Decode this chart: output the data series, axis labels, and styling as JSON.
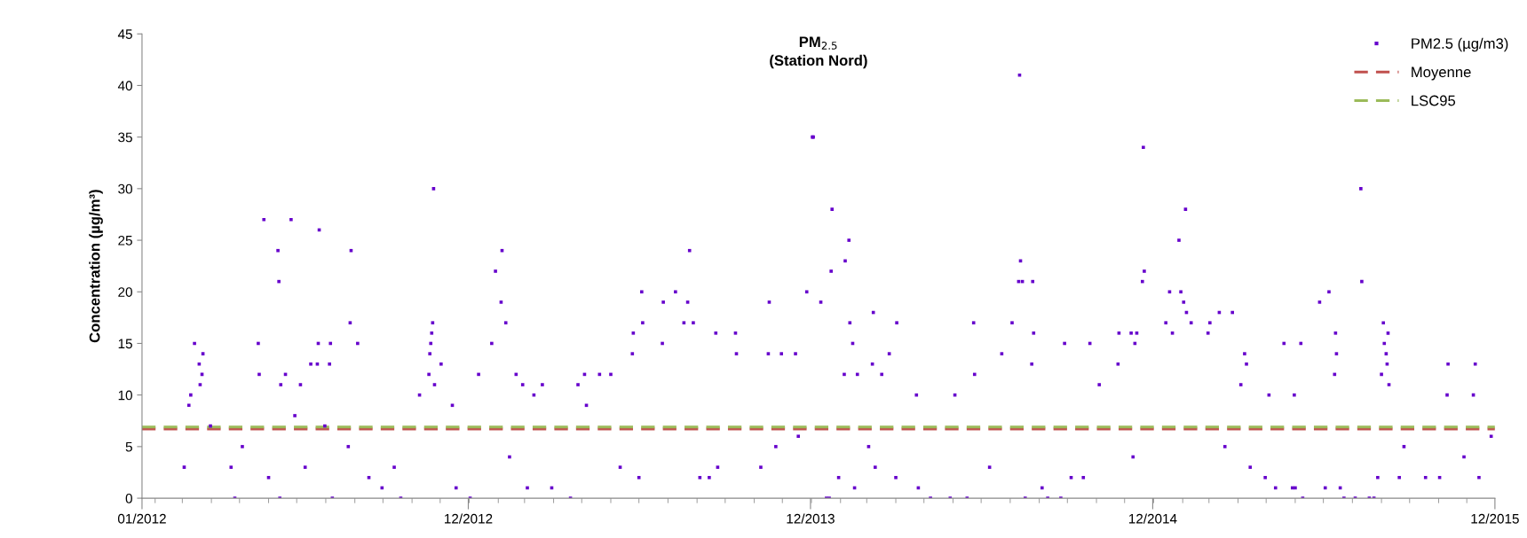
{
  "chart_data": {
    "type": "scatter",
    "title": "PM$_{2.5}$",
    "subtitle": "(Station Nord)",
    "ylabel": "Concentration (µg/m³)",
    "xlim": [
      "2012-01-18",
      "2015-12-31"
    ],
    "xticks": [
      {
        "value": "2012-01-18",
        "label": "01/2012"
      },
      {
        "value": "2012-12-31",
        "label": "12/2012"
      },
      {
        "value": "2013-12-31",
        "label": "12/2013"
      },
      {
        "value": "2014-12-31",
        "label": "12/2014"
      },
      {
        "value": "2015-12-31",
        "label": "12/2015"
      }
    ],
    "ylim": [
      0,
      45
    ],
    "yticks": [
      0,
      5,
      10,
      15,
      20,
      25,
      30,
      35,
      40,
      45
    ],
    "grid": false,
    "legend": "top right",
    "marker": "square",
    "series": [
      {
        "name": "PM2.5 (µg/m3)",
        "color": "#6600cc",
        "x": [
          "2012-03-03",
          "2012-03-08",
          "2012-03-10",
          "2012-03-14",
          "2012-03-19",
          "2012-03-20",
          "2012-03-22",
          "2012-03-23",
          "2012-03-31",
          "2012-04-22",
          "2012-04-26",
          "2012-05-04",
          "2012-05-21",
          "2012-05-22",
          "2012-05-27",
          "2012-06-01",
          "2012-06-11",
          "2012-06-12",
          "2012-06-13",
          "2012-06-14",
          "2012-06-19",
          "2012-06-25",
          "2012-06-29",
          "2012-07-05",
          "2012-07-10",
          "2012-07-16",
          "2012-07-23",
          "2012-07-24",
          "2012-07-25",
          "2012-07-31",
          "2012-08-05",
          "2012-08-06",
          "2012-08-08",
          "2012-08-25",
          "2012-08-27",
          "2012-08-28",
          "2012-09-04",
          "2012-09-16",
          "2012-09-30",
          "2012-10-13",
          "2012-10-20",
          "2012-11-09",
          "2012-11-19",
          "2012-11-20",
          "2012-11-21",
          "2012-11-22",
          "2012-11-23",
          "2012-11-24",
          "2012-11-25",
          "2012-12-02",
          "2012-12-14",
          "2012-12-18",
          "2013-01-02",
          "2013-01-11",
          "2013-01-25",
          "2013-01-29",
          "2013-02-04",
          "2013-02-05",
          "2013-02-09",
          "2013-02-13",
          "2013-02-20",
          "2013-02-27",
          "2013-03-04",
          "2013-03-11",
          "2013-03-20",
          "2013-03-30",
          "2013-04-19",
          "2013-04-27",
          "2013-05-04",
          "2013-05-06",
          "2013-05-20",
          "2013-06-01",
          "2013-06-11",
          "2013-06-24",
          "2013-06-25",
          "2013-07-01",
          "2013-07-04",
          "2013-07-05",
          "2013-07-26",
          "2013-07-27",
          "2013-08-09",
          "2013-08-18",
          "2013-08-22",
          "2013-08-24",
          "2013-08-28",
          "2013-09-04",
          "2013-09-14",
          "2013-09-21",
          "2013-09-23",
          "2013-10-12",
          "2013-10-13",
          "2013-11-08",
          "2013-11-16",
          "2013-11-17",
          "2013-11-24",
          "2013-11-30",
          "2013-12-15",
          "2013-12-18",
          "2013-12-27",
          "2014-01-02",
          "2014-01-03",
          "2014-01-11",
          "2014-01-17",
          "2014-01-20",
          "2014-01-22",
          "2014-01-23",
          "2014-01-30",
          "2014-02-05",
          "2014-02-06",
          "2014-02-10",
          "2014-02-11",
          "2014-02-14",
          "2014-02-16",
          "2014-02-19",
          "2014-03-03",
          "2014-03-07",
          "2014-03-08",
          "2014-03-10",
          "2014-03-17",
          "2014-03-25",
          "2014-04-01",
          "2014-04-02",
          "2014-04-23",
          "2014-04-25",
          "2014-05-08",
          "2014-05-29",
          "2014-06-03",
          "2014-06-16",
          "2014-06-23",
          "2014-06-24",
          "2014-07-10",
          "2014-07-23",
          "2014-08-03",
          "2014-08-10",
          "2014-08-11",
          "2014-08-12",
          "2014-08-14",
          "2014-08-17",
          "2014-08-24",
          "2014-08-25",
          "2014-08-26",
          "2014-09-04",
          "2014-09-10",
          "2014-09-24",
          "2014-09-28",
          "2014-10-05",
          "2014-10-18",
          "2014-10-25",
          "2014-11-04",
          "2014-11-24",
          "2014-11-25",
          "2014-12-08",
          "2014-12-10",
          "2014-12-12",
          "2014-12-14",
          "2014-12-20",
          "2014-12-21",
          "2014-12-22",
          "2015-01-14",
          "2015-01-18",
          "2015-01-21",
          "2015-01-28",
          "2015-01-30",
          "2015-02-02",
          "2015-02-04",
          "2015-02-05",
          "2015-02-10",
          "2015-02-28",
          "2015-03-02",
          "2015-03-12",
          "2015-03-18",
          "2015-03-26",
          "2015-04-04",
          "2015-04-08",
          "2015-04-10",
          "2015-04-14",
          "2015-04-30",
          "2015-05-04",
          "2015-05-11",
          "2015-05-20",
          "2015-05-29",
          "2015-05-31",
          "2015-06-01",
          "2015-06-07",
          "2015-06-09",
          "2015-06-27",
          "2015-07-03",
          "2015-07-07",
          "2015-07-13",
          "2015-07-14",
          "2015-07-15",
          "2015-07-19",
          "2015-07-23",
          "2015-08-04",
          "2015-08-10",
          "2015-08-11",
          "2015-08-19",
          "2015-08-24",
          "2015-08-28",
          "2015-09-01",
          "2015-09-03",
          "2015-09-04",
          "2015-09-06",
          "2015-09-07",
          "2015-09-08",
          "2015-09-09",
          "2015-09-20",
          "2015-09-25",
          "2015-10-18",
          "2015-11-02",
          "2015-11-10",
          "2015-11-11",
          "2015-11-28",
          "2015-12-08",
          "2015-12-10",
          "2015-12-14",
          "2015-12-27"
        ],
        "values": [
          3,
          9,
          10,
          15,
          13,
          11,
          12,
          14,
          7,
          3,
          0,
          5,
          15,
          12,
          27,
          2,
          24,
          21,
          0,
          11,
          12,
          27,
          8,
          11,
          3,
          13,
          13,
          15,
          26,
          7,
          13,
          15,
          0,
          5,
          17,
          24,
          15,
          2,
          1,
          3,
          0,
          10,
          12,
          14,
          15,
          16,
          17,
          30,
          11,
          13,
          9,
          1,
          0,
          12,
          15,
          22,
          19,
          24,
          17,
          4,
          12,
          11,
          1,
          10,
          11,
          1,
          0,
          11,
          12,
          9,
          12,
          12,
          3,
          14,
          16,
          2,
          20,
          17,
          15,
          19,
          20,
          17,
          19,
          24,
          17,
          2,
          2,
          16,
          3,
          16,
          14,
          3,
          14,
          19,
          5,
          14,
          14,
          6,
          20,
          35,
          35,
          19,
          0,
          0,
          22,
          28,
          2,
          12,
          23,
          25,
          17,
          15,
          1,
          12,
          5,
          13,
          18,
          3,
          12,
          14,
          2,
          17,
          10,
          1,
          0,
          0,
          10,
          0,
          17,
          12,
          3,
          14,
          17,
          21,
          41,
          23,
          21,
          0,
          13,
          21,
          16,
          1,
          0,
          0,
          15,
          2,
          2,
          15,
          11,
          13,
          16,
          16,
          4,
          15,
          16,
          21,
          34,
          22,
          17,
          20,
          16,
          25,
          20,
          19,
          28,
          18,
          17,
          16,
          17,
          18,
          5,
          18,
          11,
          14,
          13,
          3,
          2,
          10,
          1,
          15,
          1,
          10,
          1,
          15,
          0,
          19,
          1,
          20,
          12,
          16,
          14,
          1,
          0,
          0,
          30,
          21,
          0,
          0,
          2,
          12,
          17,
          15,
          14,
          13,
          16,
          11,
          2,
          5,
          2,
          2,
          10,
          13,
          4,
          10,
          13,
          2,
          6
        ]
      }
    ],
    "ref_lines": [
      {
        "axis": "y",
        "value": 6.7,
        "label": "Moyenne",
        "color": "#c0504d",
        "line_style": "dashed"
      },
      {
        "axis": "y",
        "value": 6.9,
        "label": "LSC95",
        "color": "#9bbb59",
        "line_style": "dashed"
      }
    ]
  }
}
